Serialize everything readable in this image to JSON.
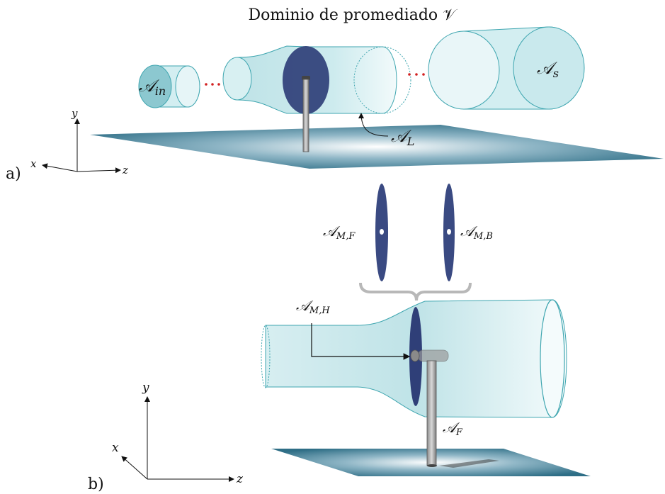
{
  "title": "Dominio de promediado 𝒱",
  "panel_a": {
    "label": "a)",
    "labels": {
      "inlet": "𝒜",
      "inlet_sub": "in",
      "outlet": "𝒜",
      "outlet_sub": "s",
      "lateral": "𝒜",
      "lateral_sub": "L"
    },
    "axes": {
      "y": "y",
      "x": "x",
      "z": "z"
    }
  },
  "panel_b": {
    "label": "b)",
    "labels": {
      "front": "𝒜",
      "front_sub": "M,F",
      "back": "𝒜",
      "back_sub": "M,B",
      "hub": "𝒜",
      "hub_sub": "M,H",
      "tower": "𝒜",
      "tower_sub": "F"
    },
    "axes": {
      "y": "y",
      "x": "x",
      "z": "z"
    }
  },
  "colors": {
    "tube_edge": "#3fa6b0",
    "tube_fill": "#c7e8ec",
    "disk": "#2f3f78",
    "ellipsis": "#d22020",
    "ground": "#2e6e86"
  }
}
